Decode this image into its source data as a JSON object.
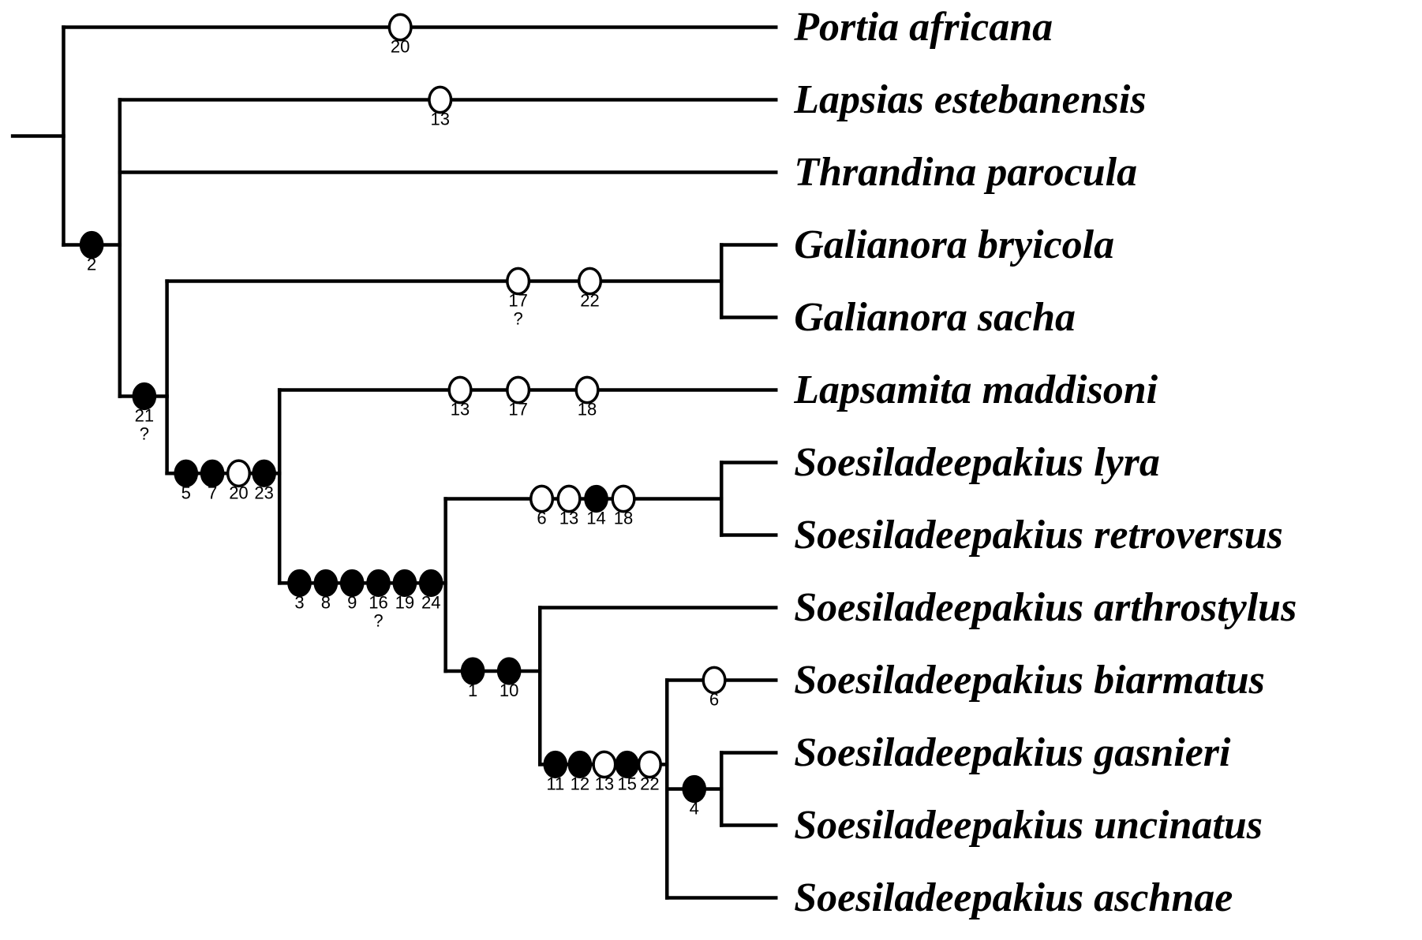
{
  "taxa": [
    "Portia africana",
    "Lapsias estebanensis",
    "Thrandina parocula",
    "Galianora bryicola",
    "Galianora sacha",
    "Lapsamita maddisoni",
    "Soesiladeepakius lyra",
    "Soesiladeepakius retroversus",
    "Soesiladeepakius arthrostylus",
    "Soesiladeepakius biarmatus",
    "Soesiladeepakius gasnieri",
    "Soesiladeepakius uncinatus",
    "Soesiladeepakius aschnae"
  ],
  "branch_characters": [
    {
      "branch": "Portia africana",
      "marks": [
        {
          "char": "20",
          "state": "open"
        }
      ]
    },
    {
      "branch": "Lapsias estebanensis",
      "marks": [
        {
          "char": "13",
          "state": "open"
        }
      ]
    },
    {
      "branch": "ingroup",
      "marks": [
        {
          "char": "2",
          "state": "filled"
        }
      ]
    },
    {
      "branch": "Galianora",
      "marks": [
        {
          "char": "17",
          "state": "open",
          "uncertain": "?"
        },
        {
          "char": "22",
          "state": "open"
        }
      ]
    },
    {
      "branch": "Galianora+Lapsamita+Soesiladeepakius",
      "marks": [
        {
          "char": "21",
          "state": "filled",
          "uncertain": "?"
        }
      ]
    },
    {
      "branch": "Lapsamita maddisoni",
      "marks": [
        {
          "char": "13",
          "state": "open"
        },
        {
          "char": "17",
          "state": "open"
        },
        {
          "char": "18",
          "state": "open"
        }
      ]
    },
    {
      "branch": "Lapsamita+Soesiladeepakius",
      "marks": [
        {
          "char": "5",
          "state": "filled"
        },
        {
          "char": "7",
          "state": "filled"
        },
        {
          "char": "20",
          "state": "open"
        },
        {
          "char": "23",
          "state": "filled"
        }
      ]
    },
    {
      "branch": "lyra+retroversus",
      "marks": [
        {
          "char": "6",
          "state": "open"
        },
        {
          "char": "13",
          "state": "open"
        },
        {
          "char": "14",
          "state": "filled"
        },
        {
          "char": "18",
          "state": "open"
        }
      ]
    },
    {
      "branch": "Soesiladeepakius",
      "marks": [
        {
          "char": "3",
          "state": "filled"
        },
        {
          "char": "8",
          "state": "filled"
        },
        {
          "char": "9",
          "state": "filled"
        },
        {
          "char": "16",
          "state": "filled",
          "uncertain": "?"
        },
        {
          "char": "19",
          "state": "filled"
        },
        {
          "char": "24",
          "state": "filled"
        }
      ]
    },
    {
      "branch": "arthrostylus+others",
      "marks": [
        {
          "char": "1",
          "state": "filled"
        },
        {
          "char": "10",
          "state": "filled"
        }
      ]
    },
    {
      "branch": "Soesiladeepakius biarmatus",
      "marks": [
        {
          "char": "6",
          "state": "open"
        }
      ]
    },
    {
      "branch": "biarmatus+gasnieri+uncinatus+aschnae",
      "marks": [
        {
          "char": "11",
          "state": "filled"
        },
        {
          "char": "12",
          "state": "filled"
        },
        {
          "char": "13",
          "state": "open"
        },
        {
          "char": "15",
          "state": "filled"
        },
        {
          "char": "22",
          "state": "open"
        }
      ]
    },
    {
      "branch": "gasnieri+uncinatus",
      "marks": [
        {
          "char": "4",
          "state": "filled"
        }
      ]
    }
  ]
}
